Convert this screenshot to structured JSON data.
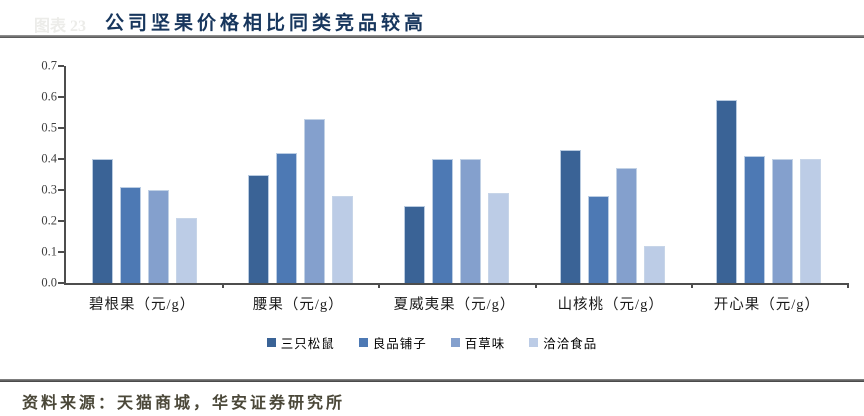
{
  "watermark": "图表 23",
  "header": {
    "title": "公司坚果价格相比同类竞品较高"
  },
  "footer": {
    "source": "资料来源：天猫商城，华安证券研究所"
  },
  "colors": {
    "title": "#17365d",
    "axis": "#4d4d4d",
    "source_text": "#4b4839",
    "series1": "#3a6396",
    "series2": "#4d79b4",
    "series3": "#84a0cd",
    "series4": "#bccce6"
  },
  "chart_data": {
    "type": "bar",
    "title": "公司坚果价格相比同类竞品较高",
    "categories": [
      "碧根果（元/g）",
      "腰果（元/g）",
      "夏威夷果（元/g）",
      "山核桃（元/g）",
      "开心果（元/g）"
    ],
    "series": [
      {
        "name": "三只松鼠",
        "color": "#3a6396",
        "values": [
          0.4,
          0.35,
          0.25,
          0.43,
          0.59
        ]
      },
      {
        "name": "良品铺子",
        "color": "#4d79b4",
        "values": [
          0.31,
          0.42,
          0.4,
          0.28,
          0.41
        ]
      },
      {
        "name": "百草味",
        "color": "#84a0cd",
        "values": [
          0.3,
          0.53,
          0.4,
          0.37,
          0.4
        ]
      },
      {
        "name": "洽洽食品",
        "color": "#bccce6",
        "values": [
          0.21,
          0.28,
          0.29,
          0.12,
          0.4
        ]
      }
    ],
    "xlabel": "",
    "ylabel": "",
    "ylim": [
      0,
      0.7
    ],
    "yticks": [
      "0.0",
      "0.1",
      "0.2",
      "0.3",
      "0.4",
      "0.5",
      "0.6",
      "0.7"
    ],
    "grid": false,
    "legend_position": "bottom"
  }
}
